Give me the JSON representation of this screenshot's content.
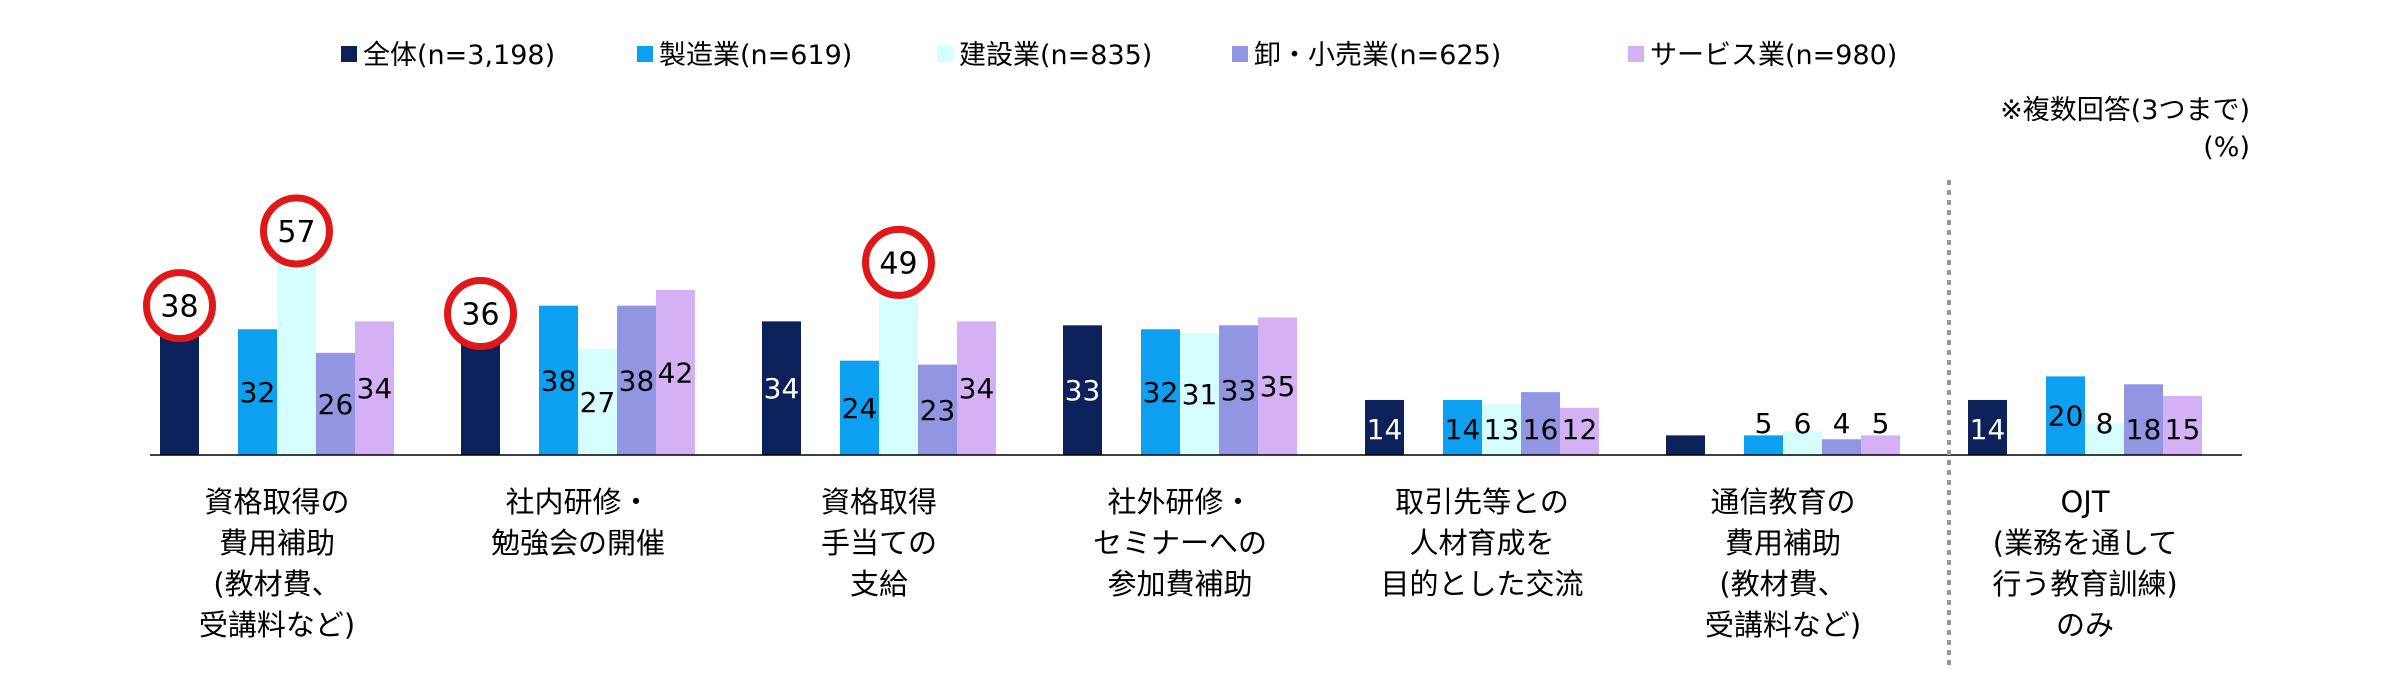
{
  "chart_data": {
    "type": "bar",
    "note_line1": "※複数回答(3つまで)",
    "note_line2": "(%)",
    "series": [
      {
        "name": "全体(n=3,198)",
        "color": "#0c2059",
        "values": [
          38,
          36,
          34,
          33,
          14,
          5,
          14
        ]
      },
      {
        "name": "製造業(n=619)",
        "color": "#0ea0f0",
        "values": [
          32,
          38,
          24,
          32,
          14,
          5,
          20
        ]
      },
      {
        "name": "建設業(n=835)",
        "color": "#d6fdff",
        "values": [
          57,
          27,
          49,
          31,
          13,
          6,
          8
        ]
      },
      {
        "name": "卸・小売業(n=625)",
        "color": "#9296e2",
        "values": [
          26,
          38,
          23,
          33,
          16,
          4,
          18
        ]
      },
      {
        "name": "サービス業(n=980)",
        "color": "#d4b0f4",
        "values": [
          34,
          42,
          34,
          35,
          12,
          5,
          15
        ]
      }
    ],
    "categories": [
      [
        "資格取得の",
        "費用補助",
        "(教材費、",
        "受講料など)"
      ],
      [
        "社内研修・",
        "勉強会の開催"
      ],
      [
        "資格取得",
        "手当ての",
        "支給"
      ],
      [
        "社外研修・",
        "セミナーへの",
        "参加費補助"
      ],
      [
        "取引先等との",
        "人材育成を",
        "目的とした交流"
      ],
      [
        "通信教育の",
        "費用補助",
        "(教材費、",
        "受講料など)"
      ],
      [
        "OJT",
        "(業務を通して",
        "行う教育訓練)",
        "のみ"
      ]
    ],
    "highlights": [
      {
        "category": 0,
        "series": 0
      },
      {
        "category": 0,
        "series": 2
      },
      {
        "category": 1,
        "series": 0
      },
      {
        "category": 2,
        "series": 2
      }
    ],
    "highlight_color": "#e01818",
    "ylim": [
      0,
      62
    ],
    "separator_before_category": 6
  }
}
